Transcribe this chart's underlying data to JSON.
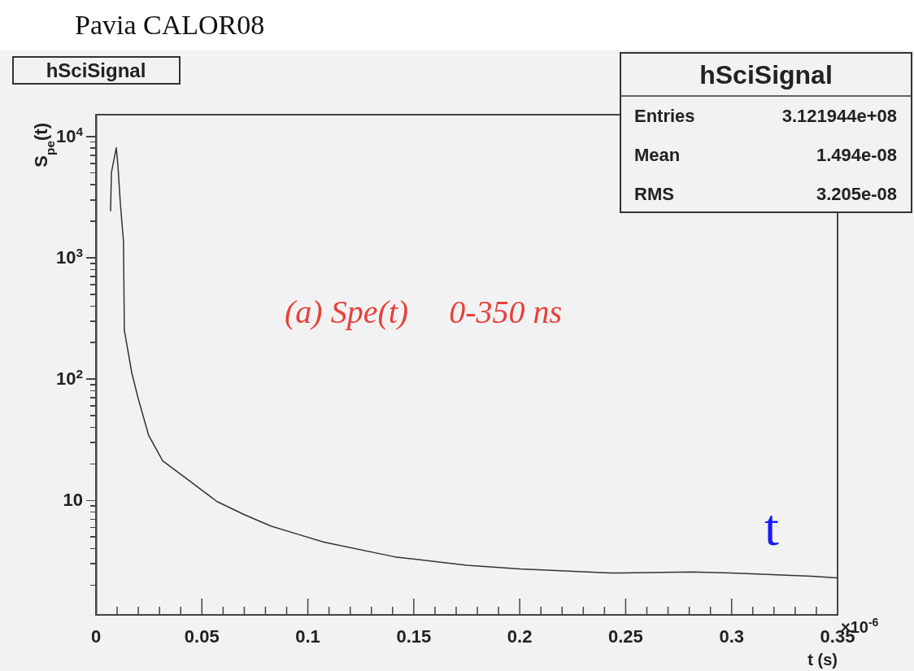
{
  "chart_data": {
    "type": "line",
    "title": "Pavia CALOR08",
    "subtitle": "hSciSignal",
    "xlabel": "t (s)",
    "ylabel": "S$_{pe}$(t)",
    "annotations": [
      "hSciSignal",
      "Entries",
      "3.121944e+08",
      "Mean",
      "1.494e-08",
      "RMS",
      "3.205e-08",
      "(a) Spe(t)     0-350 ns",
      "t",
      "×10$^{-6}$"
    ],
    "series": [
      {
        "color": "#333333",
        "x": [
          0.0069,
          0.0073,
          0.0096,
          0.0104,
          0.0115,
          0.013,
          0.0134,
          0.0169,
          0.02,
          0.0249,
          0.0315,
          0.0441,
          0.0572,
          0.0698,
          0.0825,
          0.0956,
          0.1075,
          0.141,
          0.175,
          0.2,
          0.243,
          0.281,
          0.3,
          0.338,
          0.35
        ],
        "values": [
          2400,
          5000,
          8000,
          5600,
          2800,
          1350,
          250,
          112,
          68,
          34,
          21,
          14.4,
          9.7,
          7.6,
          6.1,
          5.2,
          4.5,
          3.4,
          2.9,
          2.7,
          2.5,
          2.55,
          2.5,
          2.35,
          2.28
        ]
      }
    ],
    "log": "y",
    "grid": false,
    "marker": "none",
    "line_style": "solid",
    "xlim": [
      0,
      0.35
    ],
    "ylim": [
      1.13,
      15000
    ],
    "xticks": [
      0,
      {
        "value": 0.01,
        "label": null
      },
      {
        "value": 0.02,
        "label": null
      },
      {
        "value": 0.03,
        "label": null
      },
      {
        "value": 0.04,
        "label": null
      },
      0.05,
      {
        "value": 0.06,
        "label": null
      },
      {
        "value": 0.07,
        "label": null
      },
      {
        "value": 0.08,
        "label": null
      },
      {
        "value": 0.09,
        "label": null
      },
      0.1,
      {
        "value": 0.11,
        "label": null
      },
      {
        "value": 0.12,
        "label": null
      },
      {
        "value": 0.13,
        "label": null
      },
      {
        "value": 0.14,
        "label": null
      },
      0.15,
      {
        "value": 0.16,
        "label": null
      },
      {
        "value": 0.17,
        "label": null
      },
      {
        "value": 0.18,
        "label": null
      },
      {
        "value": 0.19,
        "label": null
      },
      0.2,
      {
        "value": 0.21,
        "label": null
      },
      {
        "value": 0.22,
        "label": null
      },
      {
        "value": 0.23,
        "label": null
      },
      {
        "value": 0.24,
        "label": null
      },
      0.25,
      {
        "value": 0.26,
        "label": null
      },
      {
        "value": 0.27,
        "label": null
      },
      {
        "value": 0.28,
        "label": null
      },
      {
        "value": 0.29,
        "label": null
      },
      0.3,
      {
        "value": 0.31,
        "label": null
      },
      {
        "value": 0.32,
        "label": null
      },
      {
        "value": 0.33,
        "label": null
      },
      {
        "value": 0.34,
        "label": null
      },
      0.35
    ],
    "yticks": [
      {
        "value": 2,
        "label": null
      },
      {
        "value": 3,
        "label": null
      },
      {
        "value": 4,
        "label": null
      },
      {
        "value": 5,
        "label": null
      },
      {
        "value": 6,
        "label": null
      },
      {
        "value": 7,
        "label": null
      },
      {
        "value": 8,
        "label": null
      },
      {
        "value": 9,
        "label": null
      },
      10,
      {
        "value": 20,
        "label": null
      },
      {
        "value": 30,
        "label": null
      },
      {
        "value": 40,
        "label": null
      },
      {
        "value": 50,
        "label": null
      },
      {
        "value": 60,
        "label": null
      },
      {
        "value": 70,
        "label": null
      },
      {
        "value": 80,
        "label": null
      },
      {
        "value": 90,
        "label": null
      },
      {
        "value": 100,
        "label": "10$^{2}$"
      },
      {
        "value": 200,
        "label": null
      },
      {
        "value": 300,
        "label": null
      },
      {
        "value": 400,
        "label": null
      },
      {
        "value": 500,
        "label": null
      },
      {
        "value": 600,
        "label": null
      },
      {
        "value": 700,
        "label": null
      },
      {
        "value": 800,
        "label": null
      },
      {
        "value": 900,
        "label": null
      },
      {
        "value": 1000,
        "label": "10$^{3}$"
      },
      {
        "value": 2000,
        "label": null
      },
      {
        "value": 3000,
        "label": null
      },
      {
        "value": 4000,
        "label": null
      },
      {
        "value": 5000,
        "label": null
      },
      {
        "value": 6000,
        "label": null
      },
      {
        "value": 7000,
        "label": null
      },
      {
        "value": 8000,
        "label": null
      },
      {
        "value": 9000,
        "label": null
      },
      {
        "value": 10000,
        "label": "10$^{4}$"
      }
    ]
  }
}
